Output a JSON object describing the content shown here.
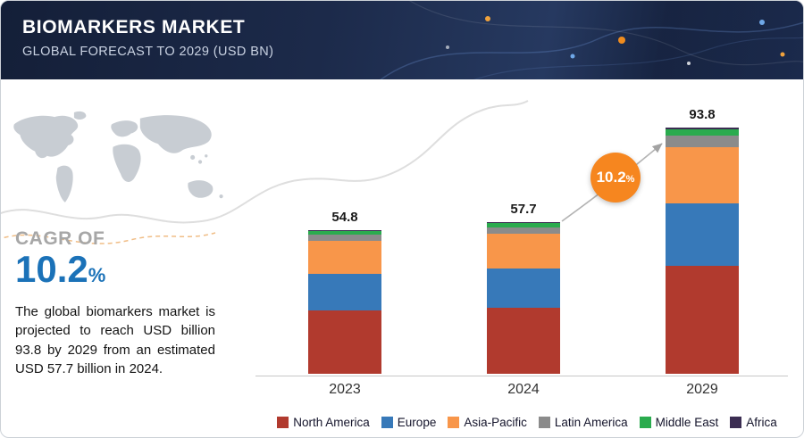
{
  "header": {
    "title": "BIOMARKERS MARKET",
    "subtitle": "GLOBAL FORECAST TO 2029 (USD BN)"
  },
  "left": {
    "cagr_label": "CAGR OF",
    "cagr_value": "10.2",
    "cagr_percent": "%",
    "description": "The global biomarkers market is projected to reach USD billion 93.8 by 2029 from an estimated USD 57.7 billion in 2024."
  },
  "badge": {
    "value": "10.2",
    "percent": "%"
  },
  "colors": {
    "header_navy": "#1c2a4a",
    "cagr_blue": "#1b72b8",
    "badge_orange": "#f6861f"
  },
  "chart_data": {
    "type": "bar",
    "stacked": true,
    "title": "Biomarkers Market, Global Forecast to 2029 (USD BN)",
    "categories": [
      "2023",
      "2024",
      "2029"
    ],
    "totals": [
      54.8,
      57.7,
      93.8
    ],
    "series": [
      {
        "name": "North America",
        "color": "#b13a2e",
        "values": [
          24.0,
          25.2,
          41.0
        ]
      },
      {
        "name": "Europe",
        "color": "#3779b9",
        "values": [
          14.0,
          14.8,
          24.0
        ]
      },
      {
        "name": "Asia-Pacific",
        "color": "#f8964a",
        "values": [
          12.5,
          13.2,
          21.5
        ]
      },
      {
        "name": "Latin America",
        "color": "#8b8b8b",
        "values": [
          2.5,
          2.6,
          4.3
        ]
      },
      {
        "name": "Middle East",
        "color": "#2aab4e",
        "values": [
          1.5,
          1.6,
          2.5
        ]
      },
      {
        "name": "Africa",
        "color": "#3b2d52",
        "values": [
          0.3,
          0.3,
          0.5
        ]
      }
    ],
    "annotation": "10.2%",
    "xlabel": "",
    "ylabel": "USD BN",
    "ylim": [
      0,
      100
    ],
    "grid": false,
    "legend_position": "bottom"
  }
}
